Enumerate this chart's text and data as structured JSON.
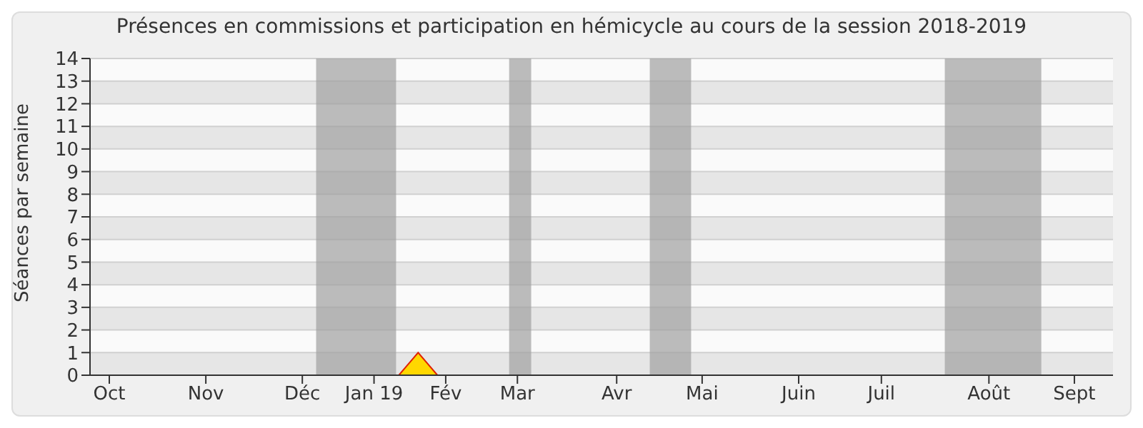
{
  "chart_data": {
    "type": "area",
    "title": "Présences en commissions et participation en hémicycle au cours de la session 2018-2019",
    "ylabel": "Séances par semaine",
    "x": [
      "2018-10-01",
      "2018-10-08",
      "2018-10-15",
      "2018-10-22",
      "2018-10-29",
      "2018-11-05",
      "2018-11-12",
      "2018-11-19",
      "2018-11-26",
      "2018-12-03",
      "2018-12-10",
      "2018-12-17",
      "2018-12-24",
      "2018-12-31",
      "2019-01-07",
      "2019-01-14",
      "2019-01-21",
      "2019-01-28",
      "2019-02-04",
      "2019-02-11",
      "2019-02-18",
      "2019-02-25",
      "2019-03-04",
      "2019-03-11",
      "2019-03-18",
      "2019-03-25",
      "2019-04-01",
      "2019-04-08",
      "2019-04-15",
      "2019-04-22",
      "2019-04-29",
      "2019-05-06",
      "2019-05-13",
      "2019-05-20",
      "2019-05-27",
      "2019-06-03",
      "2019-06-10",
      "2019-06-17",
      "2019-06-24",
      "2019-07-01",
      "2019-07-08",
      "2019-07-15",
      "2019-07-22",
      "2019-07-29",
      "2019-08-05",
      "2019-08-12",
      "2019-08-19",
      "2019-08-26",
      "2019-09-02",
      "2019-09-09",
      "2019-09-16",
      "2019-09-23",
      "2019-09-30"
    ],
    "series": [
      {
        "color": "#ffd700",
        "values": [
          0,
          0,
          0,
          0,
          0,
          0,
          0,
          0,
          0,
          0,
          0,
          0,
          0,
          0,
          0,
          0,
          0,
          1,
          0,
          0,
          0,
          0,
          0,
          0,
          0,
          0,
          0,
          0,
          0,
          0,
          0,
          0,
          0,
          0,
          0,
          0,
          0,
          0,
          0,
          0,
          0,
          0,
          0,
          0,
          0,
          0,
          0,
          0,
          0,
          0,
          0,
          0,
          0
        ]
      }
    ],
    "xlim": [
      "2018-10-01",
      "2019-10-07"
    ],
    "xticks": [
      {
        "value": "2018-10-08",
        "label": "Oct"
      },
      {
        "value": "2018-11-12",
        "label": "Nov"
      },
      {
        "value": "2018-12-17",
        "label": "Déc"
      },
      {
        "value": "2019-01-12",
        "label": "Jan 19"
      },
      {
        "value": "2019-02-07",
        "label": "Fév"
      },
      {
        "value": "2019-03-05",
        "label": "Mar"
      },
      {
        "value": "2019-04-10",
        "label": "Avr"
      },
      {
        "value": "2019-05-11",
        "label": "Mai"
      },
      {
        "value": "2019-06-15",
        "label": "Juin"
      },
      {
        "value": "2019-07-15",
        "label": "Juil"
      },
      {
        "value": "2019-08-23",
        "label": "Août"
      },
      {
        "value": "2019-09-23",
        "label": "Sept"
      }
    ],
    "ylim": [
      0,
      14
    ],
    "yticks": [
      0,
      1,
      2,
      3,
      4,
      5,
      6,
      7,
      8,
      9,
      10,
      11,
      12,
      13,
      14
    ],
    "bands": [
      {
        "axis": "x",
        "from": "2018-12-22",
        "to": "2019-01-20",
        "color": "#a0a0a0"
      },
      {
        "axis": "x",
        "from": "2019-03-02",
        "to": "2019-03-10",
        "color": "#a0a0a0"
      },
      {
        "axis": "x",
        "from": "2019-04-22",
        "to": "2019-05-07",
        "color": "#a0a0a0"
      },
      {
        "axis": "x",
        "from": "2019-08-07",
        "to": "2019-09-11",
        "color": "#a0a0a0"
      }
    ],
    "grid": "y",
    "legend": false,
    "marker": "none"
  }
}
